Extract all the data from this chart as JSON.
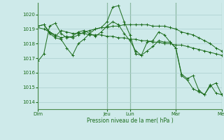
{
  "background_color": "#ceeaea",
  "grid_color": "#aacece",
  "line_color": "#1a6b1a",
  "sep_color": "#4a8a4a",
  "marker": "+",
  "xlabel": "Pression niveau de la mer( hPa )",
  "ylim": [
    1013.5,
    1020.8
  ],
  "yticks": [
    1014,
    1015,
    1016,
    1017,
    1018,
    1019,
    1020
  ],
  "day_labels": [
    "Dim",
    "Jeu",
    "Lun",
    "Mar",
    "Mer"
  ],
  "day_positions": [
    0,
    12,
    16,
    24,
    32
  ],
  "total_points": 33,
  "series": [
    [
      1016.8,
      1017.3,
      1019.2,
      1019.4,
      1018.7,
      1018.4,
      1018.5,
      1018.8,
      1018.9,
      1018.7,
      1019.0,
      1019.1,
      1019.5,
      1020.5,
      1020.6,
      1019.5,
      1018.6,
      1017.3,
      1017.2,
      1018.1,
      1018.2,
      1018.8,
      1018.6,
      1018.1,
      1017.7,
      1015.9,
      1015.6,
      1015.8,
      1014.8,
      1014.5,
      1015.1,
      1015.3,
      1014.5
    ],
    [
      1019.2,
      1019.3,
      1018.8,
      1018.5,
      1018.9,
      1018.8,
      1018.7,
      1018.7,
      1018.7,
      1018.6,
      1018.6,
      1018.6,
      1018.5,
      1018.5,
      1018.4,
      1018.4,
      1018.3,
      1018.3,
      1018.2,
      1018.2,
      1018.1,
      1018.1,
      1018.0,
      1018.0,
      1017.9,
      1017.9,
      1017.8,
      1017.7,
      1017.6,
      1017.5,
      1017.4,
      1017.3,
      1017.2
    ],
    [
      1019.1,
      1019.0,
      1018.8,
      1018.6,
      1018.4,
      1018.5,
      1018.4,
      1018.6,
      1018.8,
      1018.9,
      1019.0,
      1019.1,
      1019.1,
      1019.2,
      1019.2,
      1019.3,
      1019.3,
      1019.3,
      1019.3,
      1019.3,
      1019.2,
      1019.2,
      1019.2,
      1019.1,
      1019.0,
      1018.8,
      1018.7,
      1018.6,
      1018.4,
      1018.2,
      1018.0,
      1017.7,
      1017.5
    ],
    [
      1019.2,
      1019.3,
      1018.7,
      1018.4,
      1018.3,
      1017.7,
      1017.2,
      1018.0,
      1018.3,
      1018.7,
      1018.5,
      1018.8,
      1019.2,
      1019.5,
      1019.3,
      1018.7,
      1018.2,
      1017.5,
      1017.2,
      1017.5,
      1017.8,
      1018.2,
      1018.1,
      1018.1,
      1017.7,
      1015.8,
      1015.5,
      1014.9,
      1014.7,
      1014.5,
      1015.2,
      1014.6,
      1014.5
    ]
  ]
}
